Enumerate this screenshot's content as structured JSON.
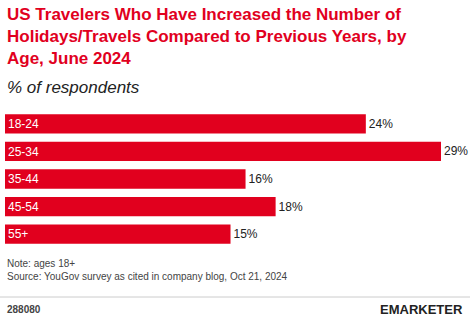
{
  "chart_data": {
    "type": "bar",
    "title": "US Travelers Who Have Increased the Number of\nHolidays/Travels Compared to Previous Years, by\nAge, June 2024",
    "subtitle": "% of respondents",
    "categories": [
      "18-24",
      "25-34",
      "35-44",
      "45-54",
      "55+"
    ],
    "values": [
      24,
      29,
      16,
      18,
      15
    ],
    "value_labels": [
      "24%",
      "29%",
      "16%",
      "18%",
      "15%"
    ],
    "color": "#e1001e",
    "orientation": "horizontal",
    "data_labels": true,
    "tick_labels": "y",
    "grid": false,
    "xlim": [
      0,
      29
    ],
    "annotations": [
      "Note: ages 18+",
      "Source: YouGov survey as cited in company blog, Oct 21, 2024",
      "288080",
      "EMARKETER"
    ]
  }
}
